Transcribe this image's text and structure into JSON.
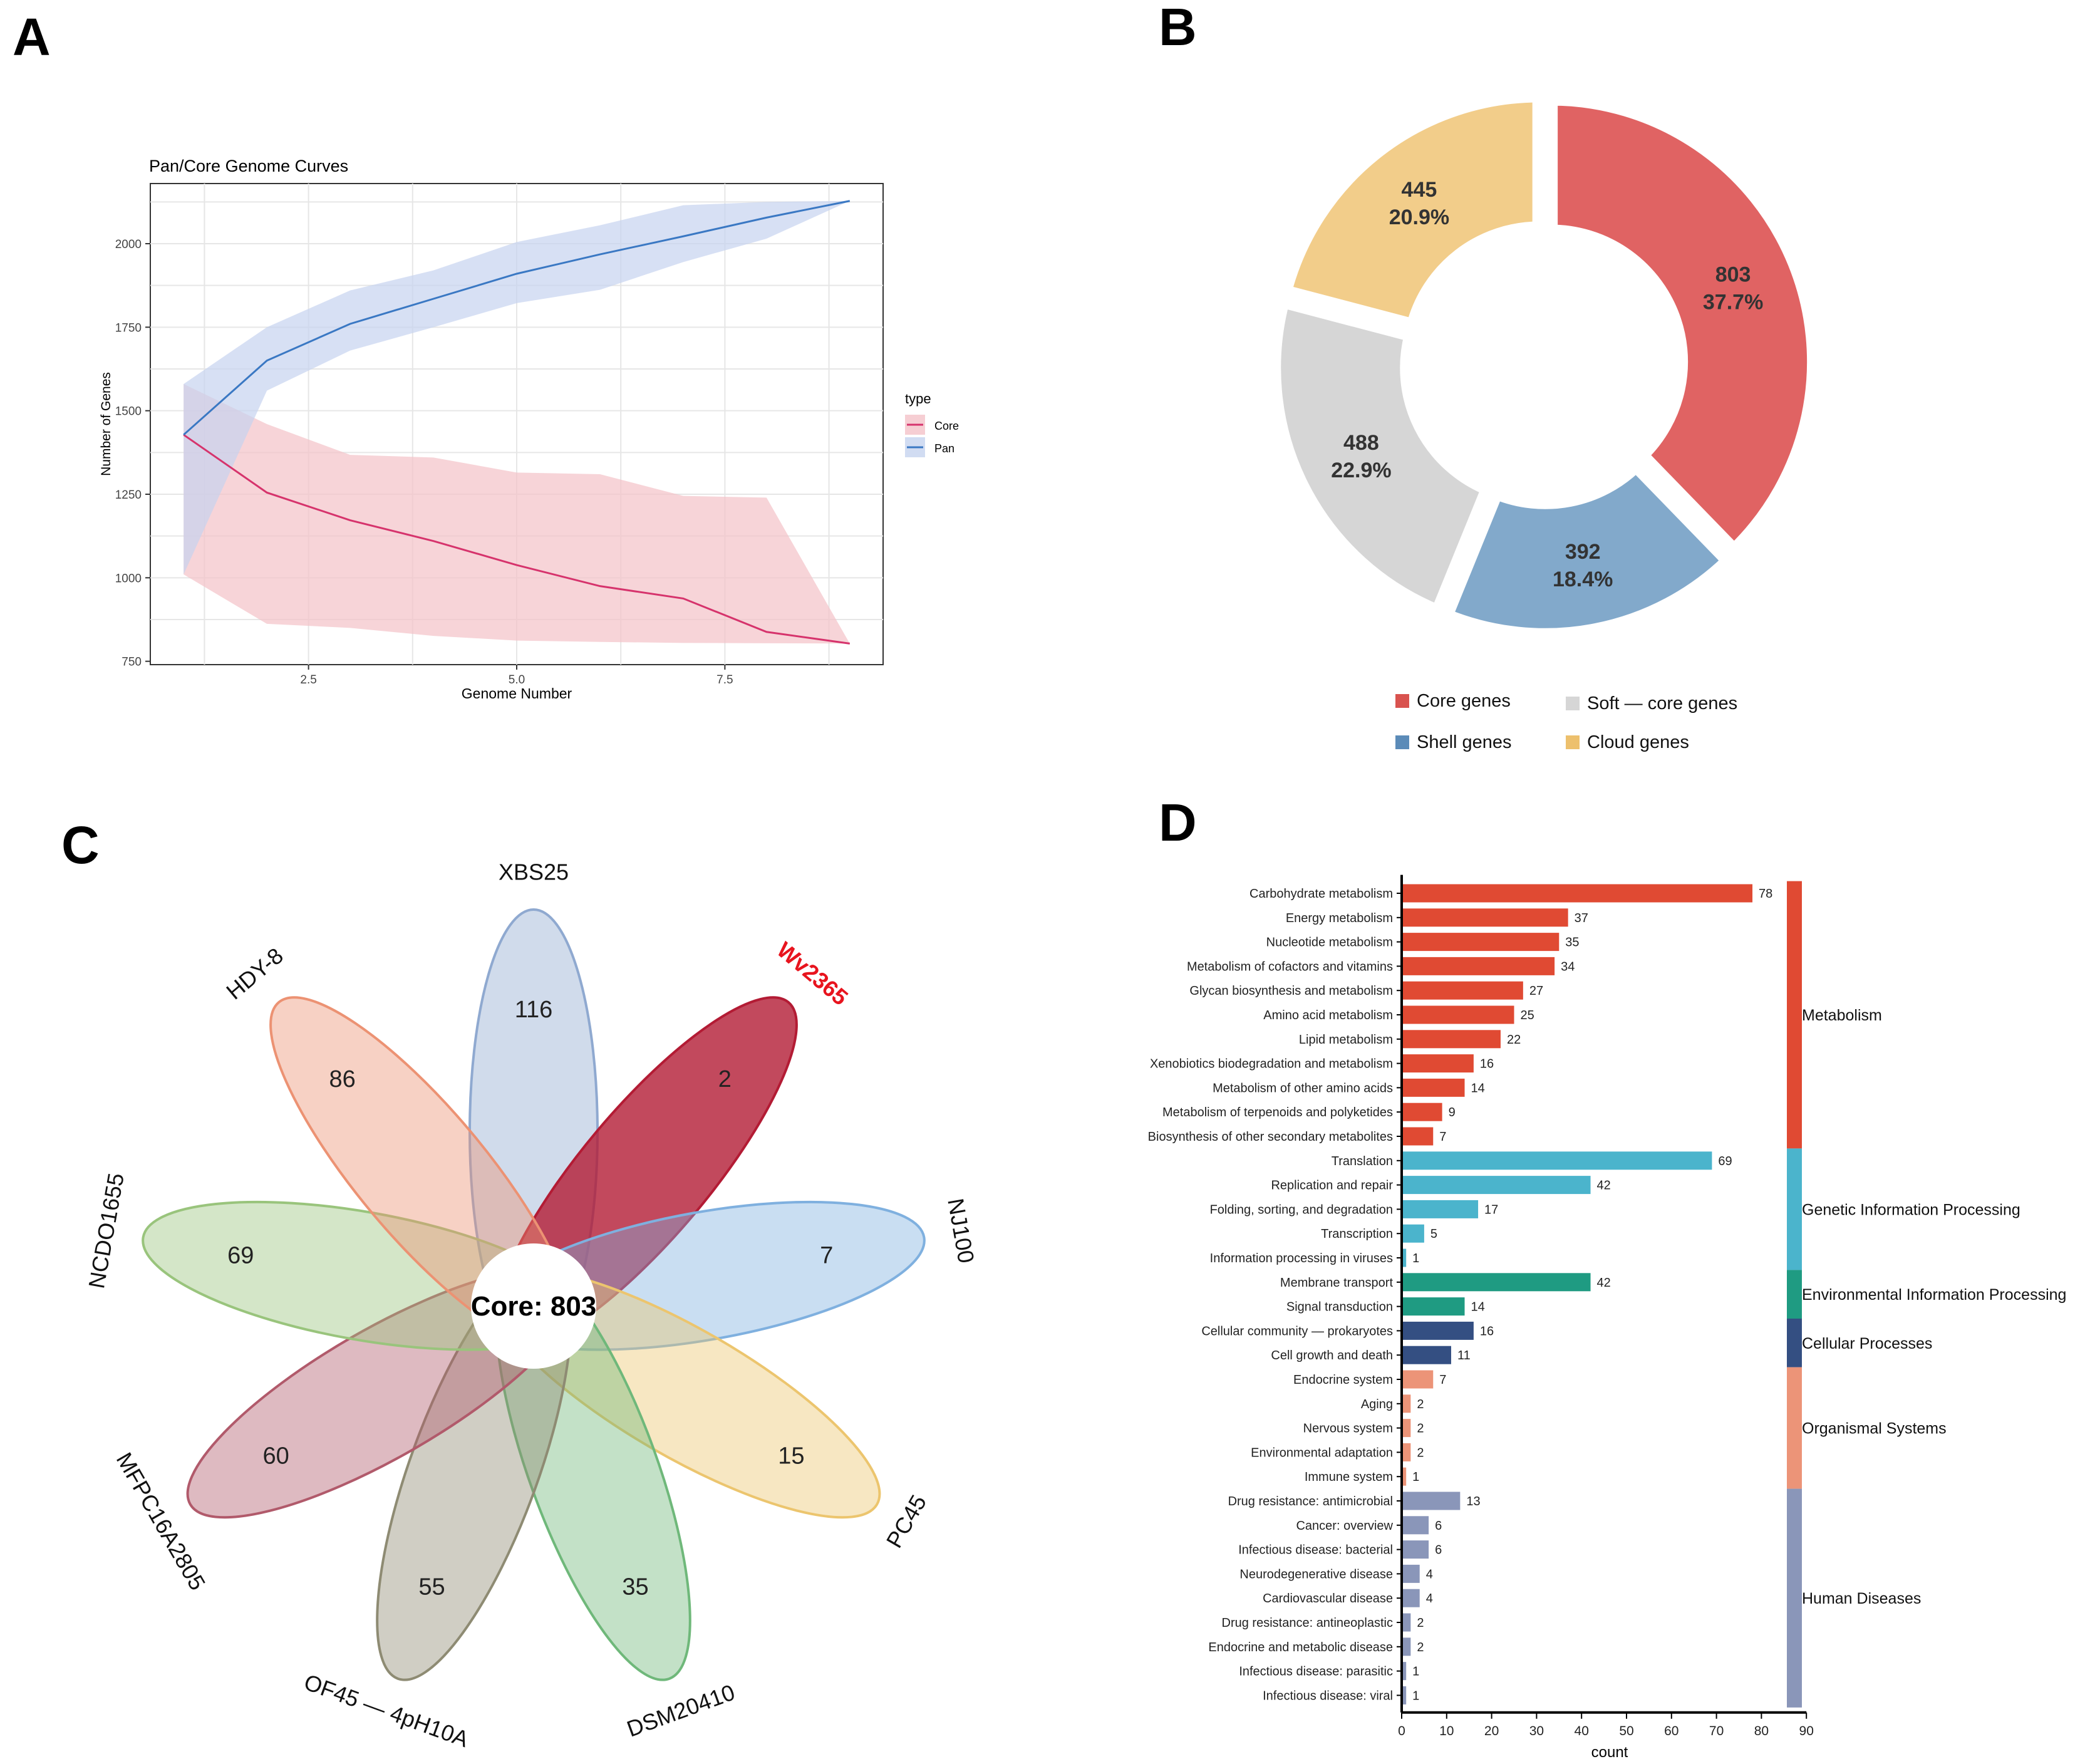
{
  "panels": {
    "a": "A",
    "b": "B",
    "c": "C",
    "d": "D"
  },
  "chart_data": [
    {
      "type": "line",
      "title": "Pan/Core Genome Curves",
      "xlabel": "Genome Number",
      "ylabel": "Number of Genes",
      "xlim": [
        0.6,
        9.4
      ],
      "ylim": [
        740,
        2180
      ],
      "xticks": [
        2.5,
        5.0,
        7.5
      ],
      "xtick_labels": [
        "2.5",
        "5.0",
        "7.5"
      ],
      "yticks": [
        750,
        1000,
        1250,
        1500,
        1750,
        2000
      ],
      "ytick_labels": [
        "750",
        "1000",
        "1250",
        "1500",
        "1750",
        "2000"
      ],
      "legend_title": "type",
      "legend_position": "right",
      "grid": true,
      "series": [
        {
          "name": "Core",
          "color": "#d6336c",
          "fill": "#f4c2c8",
          "x": [
            1,
            2,
            3,
            4,
            5,
            6,
            7,
            8,
            9
          ],
          "values": [
            1428,
            1255,
            1172,
            1110,
            1038,
            975,
            938,
            838,
            803
          ],
          "upper": [
            1580,
            1460,
            1368,
            1360,
            1315,
            1310,
            1245,
            1240,
            803
          ],
          "lower": [
            1010,
            862,
            850,
            826,
            812,
            808,
            805,
            804,
            803
          ]
        },
        {
          "name": "Pan",
          "color": "#3a78c3",
          "fill": "#c6d3ef",
          "x": [
            1,
            2,
            3,
            4,
            5,
            6,
            7,
            8,
            9
          ],
          "values": [
            1428,
            1650,
            1760,
            1835,
            1910,
            1968,
            2022,
            2078,
            2128
          ],
          "upper": [
            1580,
            1750,
            1860,
            1920,
            2005,
            2055,
            2115,
            2125,
            2128
          ],
          "lower": [
            1010,
            1560,
            1680,
            1750,
            1822,
            1862,
            1945,
            2015,
            2128
          ]
        }
      ]
    },
    {
      "type": "pie",
      "style": "donut",
      "slices": [
        {
          "label": "Core genes",
          "value": 803,
          "percent": "37.7%",
          "color": "#e06363"
        },
        {
          "label": "Shell genes",
          "value": 392,
          "percent": "18.4%",
          "color": "#82a9cb"
        },
        {
          "label": "Soft — core genes",
          "value": 488,
          "percent": "22.9%",
          "color": "#d6d6d6"
        },
        {
          "label": "Cloud genes",
          "value": 445,
          "percent": "20.9%",
          "color": "#f2cd8a"
        }
      ],
      "legend": [
        {
          "label": "Core genes",
          "color": "#d9534f"
        },
        {
          "label": "Soft — core genes",
          "color": "#d6d6d6"
        },
        {
          "label": "Shell genes",
          "color": "#5b8bb8"
        },
        {
          "label": "Cloud genes",
          "color": "#edc06d"
        }
      ]
    },
    {
      "type": "petal",
      "core_label": "Core: 803",
      "petals": [
        {
          "name": "XBS25",
          "unique": 116,
          "color": "#8fa9d0",
          "highlight": false
        },
        {
          "name": "Wv2365",
          "unique": 2,
          "color": "#b31b34",
          "highlight": true
        },
        {
          "name": "NJ100",
          "unique": 7,
          "color": "#7fb0df",
          "highlight": false
        },
        {
          "name": "PC45",
          "unique": 15,
          "color": "#ecc56e",
          "highlight": false
        },
        {
          "name": "DSM20410",
          "unique": 35,
          "color": "#6fb87a",
          "highlight": false
        },
        {
          "name": "OF45 — 4pH10A",
          "unique": 55,
          "color": "#8e8b73",
          "highlight": false
        },
        {
          "name": "MFPC16A2805",
          "unique": 60,
          "color": "#b15a6b",
          "highlight": false
        },
        {
          "name": "NCDO1655",
          "unique": 69,
          "color": "#99c47c",
          "highlight": false
        },
        {
          "name": "HDY-8",
          "unique": 86,
          "color": "#ec9273",
          "highlight": false
        }
      ],
      "highlight_color": "#e8141e"
    },
    {
      "type": "bar",
      "orientation": "horizontal",
      "xlabel": "count",
      "xlim": [
        0,
        90
      ],
      "xticks": [
        0,
        10,
        20,
        30,
        40,
        50,
        60,
        70,
        80,
        90
      ],
      "xtick_labels": [
        "0",
        "10",
        "20",
        "30",
        "40",
        "50",
        "60",
        "70",
        "80",
        "90"
      ],
      "groups": [
        {
          "name": "Metabolism",
          "color": "#e04a33",
          "items": [
            {
              "label": "Carbohydrate metabolism",
              "value": 78
            },
            {
              "label": "Energy metabolism",
              "value": 37
            },
            {
              "label": "Nucleotide metabolism",
              "value": 35
            },
            {
              "label": "Metabolism of cofactors and vitamins",
              "value": 34
            },
            {
              "label": "Glycan biosynthesis and metabolism",
              "value": 27
            },
            {
              "label": "Amino acid metabolism",
              "value": 25
            },
            {
              "label": "Lipid metabolism",
              "value": 22
            },
            {
              "label": "Xenobiotics biodegradation and metabolism",
              "value": 16
            },
            {
              "label": "Metabolism of other amino acids",
              "value": 14
            },
            {
              "label": "Metabolism of terpenoids and polyketides",
              "value": 9
            },
            {
              "label": "Biosynthesis of other secondary metabolites",
              "value": 7
            }
          ]
        },
        {
          "name": "Genetic Information Processing",
          "color": "#4bb4cc",
          "items": [
            {
              "label": "Translation",
              "value": 69
            },
            {
              "label": "Replication and repair",
              "value": 42
            },
            {
              "label": "Folding, sorting, and degradation",
              "value": 17
            },
            {
              "label": "Transcription",
              "value": 5
            },
            {
              "label": "Information processing in viruses",
              "value": 1
            }
          ]
        },
        {
          "name": "Environmental Information Processing",
          "color": "#1f9b82",
          "items": [
            {
              "label": "Membrane transport",
              "value": 42
            },
            {
              "label": "Signal transduction",
              "value": 14
            }
          ]
        },
        {
          "name": "Cellular Processes",
          "color": "#344f82",
          "items": [
            {
              "label": "Cellular community — prokaryotes",
              "value": 16
            },
            {
              "label": "Cell growth and death",
              "value": 11
            }
          ]
        },
        {
          "name": "Organismal Systems",
          "color": "#ec9478",
          "items": [
            {
              "label": "Endocrine system",
              "value": 7
            },
            {
              "label": "Aging",
              "value": 2
            },
            {
              "label": "Nervous system",
              "value": 2
            },
            {
              "label": "Environmental adaptation",
              "value": 2
            },
            {
              "label": "Immune system",
              "value": 1
            }
          ]
        },
        {
          "name": "Human Diseases",
          "color": "#8a96b9",
          "items": [
            {
              "label": "Drug resistance: antimicrobial",
              "value": 13
            },
            {
              "label": "Cancer: overview",
              "value": 6
            },
            {
              "label": "Infectious disease: bacterial",
              "value": 6
            },
            {
              "label": "Neurodegenerative disease",
              "value": 4
            },
            {
              "label": "Cardiovascular disease",
              "value": 4
            },
            {
              "label": "Drug resistance: antineoplastic",
              "value": 2
            },
            {
              "label": "Endocrine and metabolic disease",
              "value": 2
            },
            {
              "label": "Infectious disease: parasitic",
              "value": 1
            },
            {
              "label": "Infectious disease: viral",
              "value": 1
            }
          ]
        }
      ]
    }
  ]
}
